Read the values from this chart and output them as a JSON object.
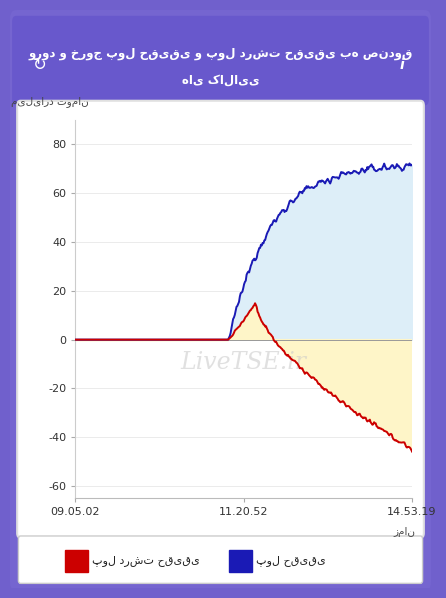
{
  "title_line1": "ورود و خروج پول حقیقی و پول درشت حقیقی به صندوق",
  "title_line2": "های کالایی",
  "ylabel": "میلیارد تومان",
  "xlabel": "زمان",
  "xtick_labels": [
    "09.05.02",
    "11.20.52",
    "14.53.19"
  ],
  "ytick_values": [
    -60,
    -40,
    -20,
    0,
    20,
    40,
    60,
    80
  ],
  "ylim": [
    -65,
    90
  ],
  "blue_line_color": "#1a1ab5",
  "red_line_color": "#cc0000",
  "fill_blue_color": "#ddeef8",
  "fill_yellow_color": "#fef5c8",
  "watermark": "LiveTSE.ir",
  "legend_blue": "پول حقیقی",
  "legend_red": "پول درشت حقیقی",
  "bg_color": "#7060cc",
  "header_bg": "#6655cc",
  "chart_bg": "#ffffff"
}
